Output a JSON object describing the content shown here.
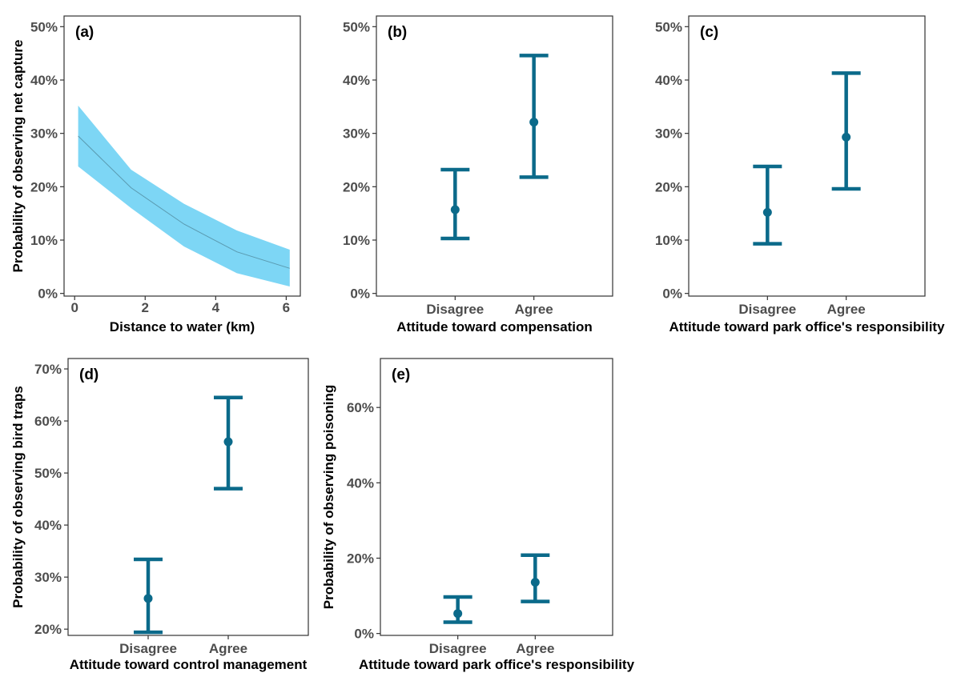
{
  "colors": {
    "errorbar": "#0b6a8a",
    "ribbon": "#7dd6f5",
    "line": "#5a9ab0"
  },
  "chart_data": [
    {
      "panel": "(a)",
      "type": "area",
      "xlabel": "Distance to water (km)",
      "ylabel": "Probability of observing net capture",
      "xlim": [
        -0.3,
        6.4
      ],
      "ylim": [
        -0.5,
        52
      ],
      "xticks": [
        0,
        2,
        4,
        6
      ],
      "yticks": [
        0,
        10,
        20,
        30,
        40,
        50
      ],
      "ytick_labels": [
        "0%",
        "10%",
        "20%",
        "30%",
        "40%",
        "50%"
      ],
      "x": [
        0.1,
        1.6,
        3.1,
        4.6,
        6.1
      ],
      "y": [
        29.5,
        19.8,
        13.0,
        7.8,
        4.7
      ],
      "lower": [
        23.8,
        16.0,
        8.8,
        3.8,
        1.3
      ],
      "upper": [
        35.2,
        23.2,
        16.8,
        11.8,
        8.2
      ]
    },
    {
      "panel": "(b)",
      "type": "errorbar",
      "xlabel": "Attitude toward compensation",
      "ylabel": "",
      "categories": [
        "Disagree",
        "Agree"
      ],
      "ylim": [
        -0.5,
        52
      ],
      "yticks": [
        0,
        10,
        20,
        30,
        40,
        50
      ],
      "ytick_labels": [
        "0%",
        "10%",
        "20%",
        "30%",
        "40%",
        "50%"
      ],
      "values": [
        15.7,
        32.1
      ],
      "lower": [
        10.3,
        21.8
      ],
      "upper": [
        23.2,
        44.6
      ]
    },
    {
      "panel": "(c)",
      "type": "errorbar",
      "xlabel": "Attitude toward park office's responsibility",
      "ylabel": "",
      "categories": [
        "Disagree",
        "Agree"
      ],
      "ylim": [
        -0.5,
        52
      ],
      "yticks": [
        0,
        10,
        20,
        30,
        40,
        50
      ],
      "ytick_labels": [
        "0%",
        "10%",
        "20%",
        "30%",
        "40%",
        "50%"
      ],
      "values": [
        15.2,
        29.3
      ],
      "lower": [
        9.3,
        19.6
      ],
      "upper": [
        23.8,
        41.3
      ]
    },
    {
      "panel": "(d)",
      "type": "errorbar",
      "xlabel": "Attitude toward control management",
      "ylabel": "Probability of observing bird traps",
      "categories": [
        "Disagree",
        "Agree"
      ],
      "ylim": [
        18.8,
        72
      ],
      "yticks": [
        20,
        30,
        40,
        50,
        60,
        70
      ],
      "ytick_labels": [
        "20%",
        "30%",
        "40%",
        "50%",
        "60%",
        "70%"
      ],
      "values": [
        25.9,
        56.0
      ],
      "lower": [
        19.4,
        47.0
      ],
      "upper": [
        33.4,
        64.5
      ]
    },
    {
      "panel": "(e)",
      "type": "errorbar",
      "xlabel": "Attitude toward park office's responsibility",
      "ylabel": "Probability of observing poisoning",
      "categories": [
        "Disagree",
        "Agree"
      ],
      "ylim": [
        -0.5,
        73
      ],
      "yticks": [
        0,
        20,
        40,
        60
      ],
      "ytick_labels": [
        "0%",
        "20%",
        "40%",
        "60%"
      ],
      "values": [
        5.3,
        13.6
      ],
      "lower": [
        3.0,
        8.5
      ],
      "upper": [
        9.7,
        20.8
      ]
    }
  ]
}
